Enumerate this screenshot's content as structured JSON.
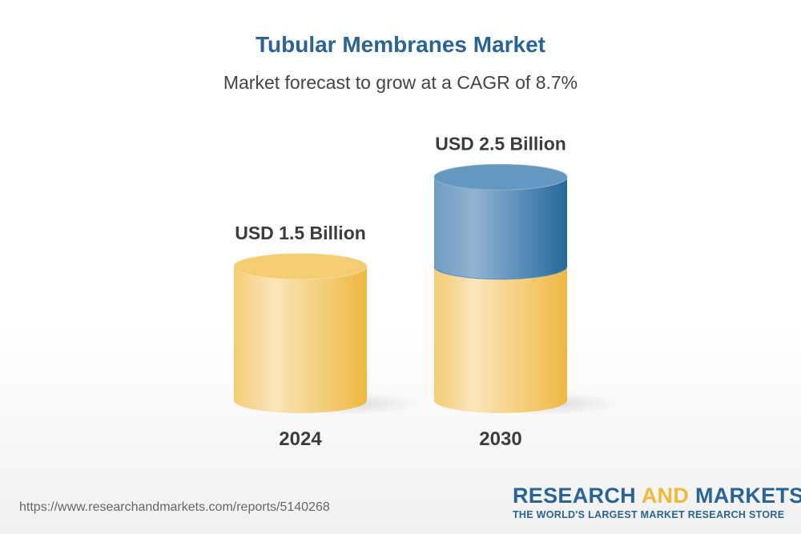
{
  "chart_data": {
    "type": "bar",
    "style": "3d-cylinder",
    "title": "Tubular Membranes Market",
    "subtitle": "Market forecast to grow at a CAGR of 8.7%",
    "categories": [
      "2024",
      "2030"
    ],
    "values": [
      1.5,
      2.5
    ],
    "unit": "USD Billion",
    "data_labels": [
      "USD 1.5 Billion",
      "USD 2.5 Billion"
    ],
    "colors": {
      "base": "#f0b93a",
      "growth": "#2a6496"
    }
  },
  "footer": {
    "url": "https://www.researchandmarkets.com/reports/5140268",
    "logo_word1": "RESEARCH",
    "logo_word2": "AND",
    "logo_word3": "MARKETS",
    "logo_tagline": "THE WORLD'S LARGEST MARKET RESEARCH STORE"
  }
}
